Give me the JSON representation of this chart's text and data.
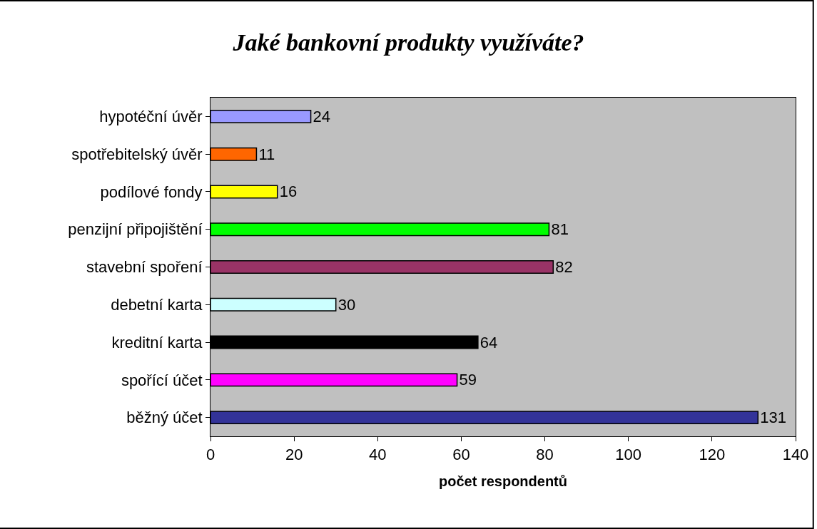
{
  "chart_data": {
    "type": "bar",
    "orientation": "horizontal",
    "title": "Jaké bankovní produkty využíváte?",
    "xlabel": "počet respondentů",
    "categories": [
      "hypotéční úvěr",
      "spotřebitelský úvěr",
      "podílové fondy",
      "penzijní připojištění",
      "stavební spoření",
      "debetní karta",
      "kreditní karta",
      "spořící účet",
      "běžný účet"
    ],
    "values": [
      24,
      11,
      16,
      81,
      82,
      30,
      64,
      59,
      131
    ],
    "colors": [
      "#9999ff",
      "#ff6600",
      "#ffff00",
      "#00ff00",
      "#993366",
      "#ccffff",
      "#000000",
      "#ff00ff",
      "#333399"
    ],
    "xlim": [
      0,
      140
    ],
    "xticks": [
      0,
      20,
      40,
      60,
      80,
      100,
      120,
      140
    ],
    "grid": false,
    "data_labels": true
  }
}
